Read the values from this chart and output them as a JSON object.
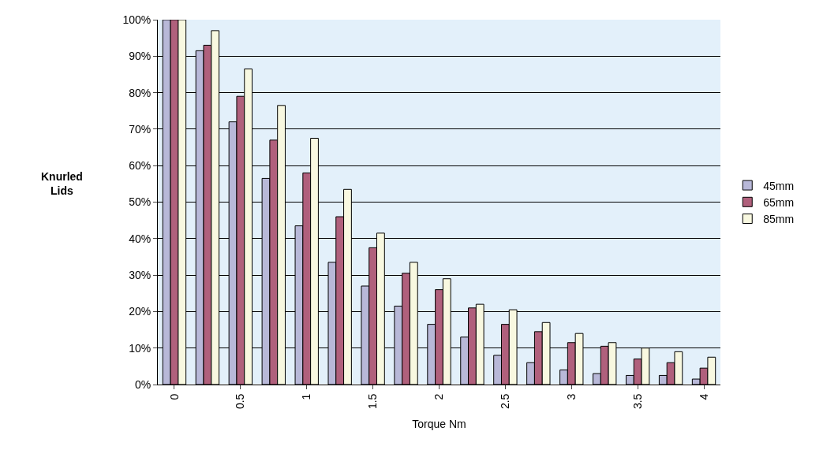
{
  "chart_data": {
    "type": "bar",
    "xlabel": "Torque Nm",
    "ylabel": "Knurled\nLids",
    "categories": [
      "0",
      null,
      "0.5",
      null,
      "1",
      null,
      "1.5",
      null,
      "2",
      null,
      "2.5",
      null,
      "3",
      null,
      "3.5",
      null,
      "4"
    ],
    "series": [
      {
        "name": "45mm",
        "color": "#b8b8d8",
        "values": [
          100,
          91.5,
          72,
          56.5,
          43.5,
          33.5,
          27,
          21.5,
          16.5,
          13,
          8,
          6,
          4,
          3,
          2.5,
          2.5,
          1.5
        ]
      },
      {
        "name": "65mm",
        "color": "#b0607c",
        "values": [
          100,
          93,
          79,
          67,
          58,
          46,
          37.5,
          30.5,
          26,
          21,
          16.5,
          14.5,
          11.5,
          10.5,
          7,
          6,
          4.5
        ]
      },
      {
        "name": "85mm",
        "color": "#f8f8e0",
        "values": [
          100,
          97,
          86.5,
          76.5,
          67.5,
          53.5,
          41.5,
          33.5,
          29,
          22,
          20.5,
          17,
          14,
          11.5,
          10,
          9,
          7.5
        ]
      }
    ],
    "ylim": [
      0,
      100
    ],
    "yticks": [
      {
        "value": 0,
        "label": "0%"
      },
      {
        "value": 10,
        "label": "10%"
      },
      {
        "value": 20,
        "label": "20%"
      },
      {
        "value": 30,
        "label": "30%"
      },
      {
        "value": 40,
        "label": "40%"
      },
      {
        "value": 50,
        "label": "50%"
      },
      {
        "value": 60,
        "label": "60%"
      },
      {
        "value": 70,
        "label": "70%"
      },
      {
        "value": 80,
        "label": "80%"
      },
      {
        "value": 90,
        "label": "90%"
      },
      {
        "value": 100,
        "label": "100%"
      }
    ],
    "grid": "y",
    "legend": "right"
  }
}
